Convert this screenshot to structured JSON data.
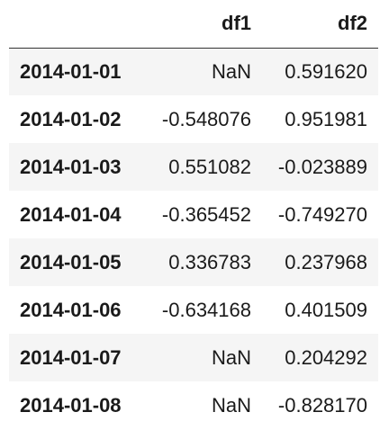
{
  "table": {
    "columns": [
      "",
      "df1",
      "df2"
    ],
    "rows": [
      {
        "index": "2014-01-01",
        "df1": "NaN",
        "df2": "0.591620"
      },
      {
        "index": "2014-01-02",
        "df1": "-0.548076",
        "df2": "0.951981"
      },
      {
        "index": "2014-01-03",
        "df1": "0.551082",
        "df2": "-0.023889"
      },
      {
        "index": "2014-01-04",
        "df1": "-0.365452",
        "df2": "-0.749270"
      },
      {
        "index": "2014-01-05",
        "df1": "0.336783",
        "df2": "0.237968"
      },
      {
        "index": "2014-01-06",
        "df1": "-0.634168",
        "df2": "0.401509"
      },
      {
        "index": "2014-01-07",
        "df1": "NaN",
        "df2": "0.204292"
      },
      {
        "index": "2014-01-08",
        "df1": "NaN",
        "df2": "-0.828170"
      }
    ]
  },
  "colors": {
    "stripe": "#f5f5f5",
    "text": "#1a1a1a",
    "header_rule": "#333333"
  }
}
